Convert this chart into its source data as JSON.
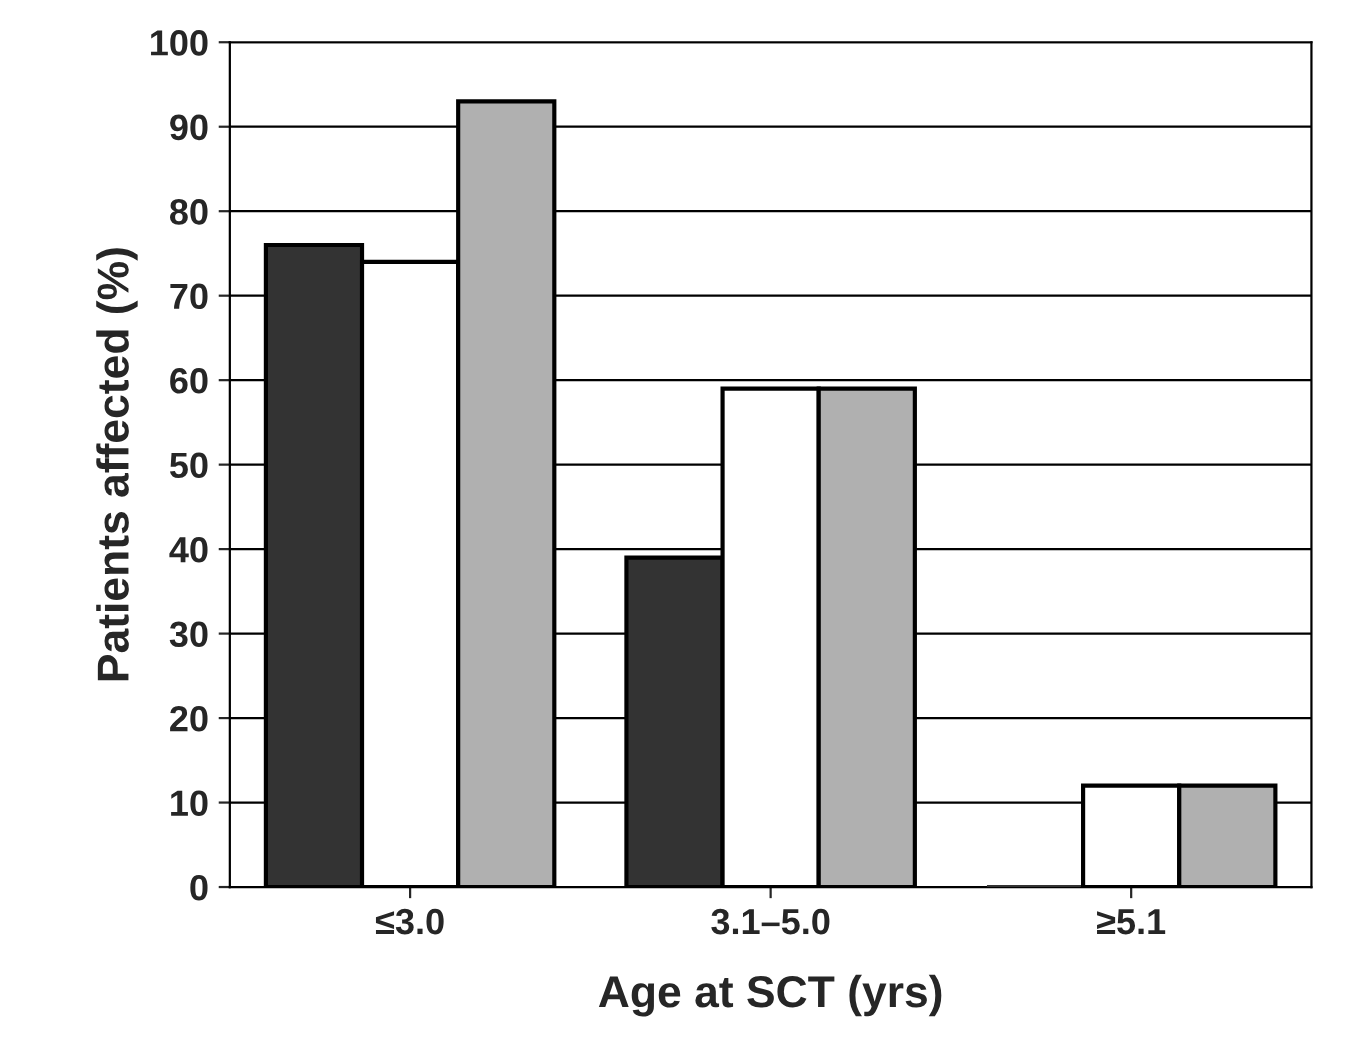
{
  "chart_data": {
    "type": "bar",
    "xlabel": "Age at SCT (yrs)",
    "ylabel": "Patients affected (%)",
    "categories": [
      "≤3.0",
      "3.1–5.0",
      "≥5.1"
    ],
    "series": [
      {
        "color": "#333333",
        "values": [
          76,
          39,
          0
        ]
      },
      {
        "color": "#ffffff",
        "values": [
          74,
          59,
          12
        ]
      },
      {
        "color": "#b0b0b0",
        "values": [
          93,
          59,
          12
        ]
      }
    ],
    "ylim": [
      0,
      100
    ],
    "yticks": [
      0,
      10,
      20,
      30,
      40,
      50,
      60,
      70,
      80,
      90,
      100
    ],
    "grid": "y"
  }
}
